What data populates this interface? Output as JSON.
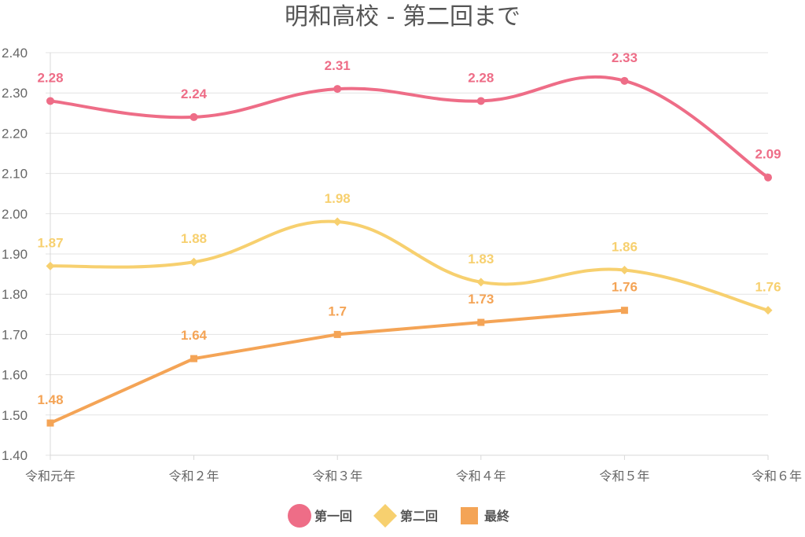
{
  "chart_data": {
    "type": "line",
    "title": "明和高校 - 第二回まで",
    "xlabel": "",
    "ylabel": "",
    "categories": [
      "令和元年",
      "令和２年",
      "令和３年",
      "令和４年",
      "令和５年",
      "令和６年"
    ],
    "ylim": [
      1.4,
      2.4
    ],
    "yticks": [
      "1.40",
      "1.50",
      "1.60",
      "1.70",
      "1.80",
      "1.90",
      "2.00",
      "2.10",
      "2.20",
      "2.30",
      "2.40"
    ],
    "grid": true,
    "legend_position": "bottom",
    "series": [
      {
        "name": "第一回",
        "values": [
          2.28,
          2.24,
          2.31,
          2.28,
          2.33,
          2.09
        ],
        "labels": [
          "2.28",
          "2.24",
          "2.31",
          "2.28",
          "2.33",
          "2.09"
        ],
        "color": "#ee6d87",
        "marker": "circle",
        "smooth": true
      },
      {
        "name": "第二回",
        "values": [
          1.87,
          1.88,
          1.98,
          1.83,
          1.86,
          1.76
        ],
        "labels": [
          "1.87",
          "1.88",
          "1.98",
          "1.83",
          "1.86",
          "1.76"
        ],
        "color": "#f7d06f",
        "marker": "diamond",
        "smooth": true
      },
      {
        "name": "最終",
        "values": [
          1.48,
          1.64,
          1.7,
          1.73,
          1.76,
          null
        ],
        "labels": [
          "1.48",
          "1.64",
          "1.7",
          "1.73",
          "1.76",
          null
        ],
        "color": "#f4a456",
        "marker": "square",
        "smooth": false
      }
    ]
  }
}
